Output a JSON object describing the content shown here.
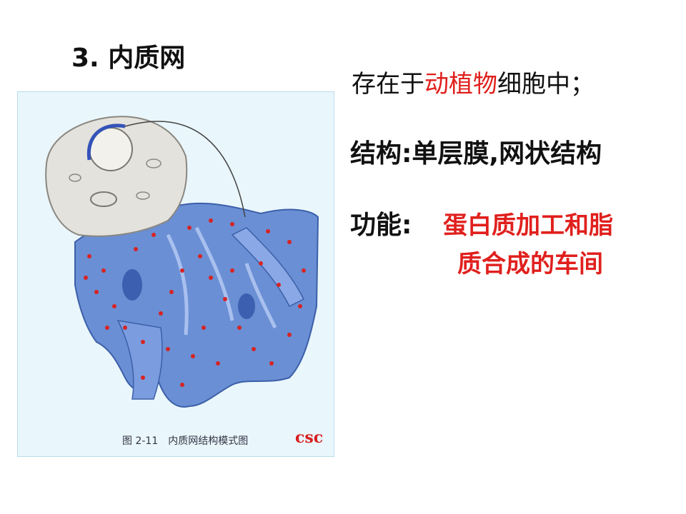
{
  "slide": {
    "title": "3. 内质网",
    "exist_prefix": "存在于",
    "exist_highlight": "动植物",
    "exist_suffix": "细胞中；",
    "structure_label": "结构",
    "structure_colon": ":",
    "structure_value": "单层膜,网状结构",
    "function_label": "功能",
    "function_colon": ":",
    "function_value_line1": "蛋白质加工和脂",
    "function_value_line2": "质合成的车间"
  },
  "figure": {
    "caption": "图 2-11　内质网结构模式图",
    "logo": "csc",
    "icon": "endoplasmic-reticulum-illustration",
    "colors": {
      "background": "#e9f6fb",
      "er": "#5e86cf",
      "ribosome": "#d62424",
      "cell": "#e4e2dc"
    }
  },
  "colors": {
    "highlight": "#e0201d",
    "text": "#111111"
  }
}
